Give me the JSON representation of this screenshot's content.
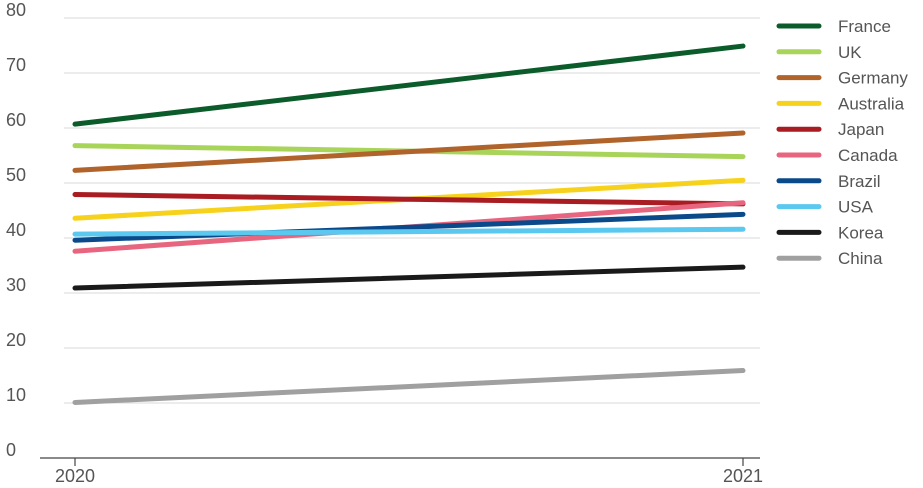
{
  "chart_data": {
    "type": "line",
    "x": [
      "2020",
      "2021"
    ],
    "ylim": [
      0,
      80
    ],
    "yticks": [
      "0",
      "10",
      "20",
      "30",
      "40",
      "50",
      "60",
      "70",
      "80"
    ],
    "grid": true,
    "legend_position": "right",
    "series": [
      {
        "name": "France",
        "color": "#0b5c2a",
        "values": [
          60.7,
          74.9
        ]
      },
      {
        "name": "UK",
        "color": "#a8d45a",
        "values": [
          56.8,
          54.8
        ]
      },
      {
        "name": "Germany",
        "color": "#b0632a",
        "values": [
          52.3,
          59.1
        ]
      },
      {
        "name": "Australia",
        "color": "#f7d21c",
        "values": [
          43.6,
          50.5
        ]
      },
      {
        "name": "Japan",
        "color": "#a81c22",
        "values": [
          47.9,
          46.2
        ]
      },
      {
        "name": "Canada",
        "color": "#e8657f",
        "values": [
          37.6,
          46.4
        ]
      },
      {
        "name": "Brazil",
        "color": "#0b4a8a",
        "values": [
          39.6,
          44.3
        ]
      },
      {
        "name": "USA",
        "color": "#5bc8f0",
        "values": [
          40.7,
          41.6
        ]
      },
      {
        "name": "Korea",
        "color": "#1a1a1a",
        "values": [
          30.9,
          34.7
        ]
      },
      {
        "name": "China",
        "color": "#a0a0a0",
        "values": [
          10.1,
          15.9
        ]
      }
    ]
  }
}
